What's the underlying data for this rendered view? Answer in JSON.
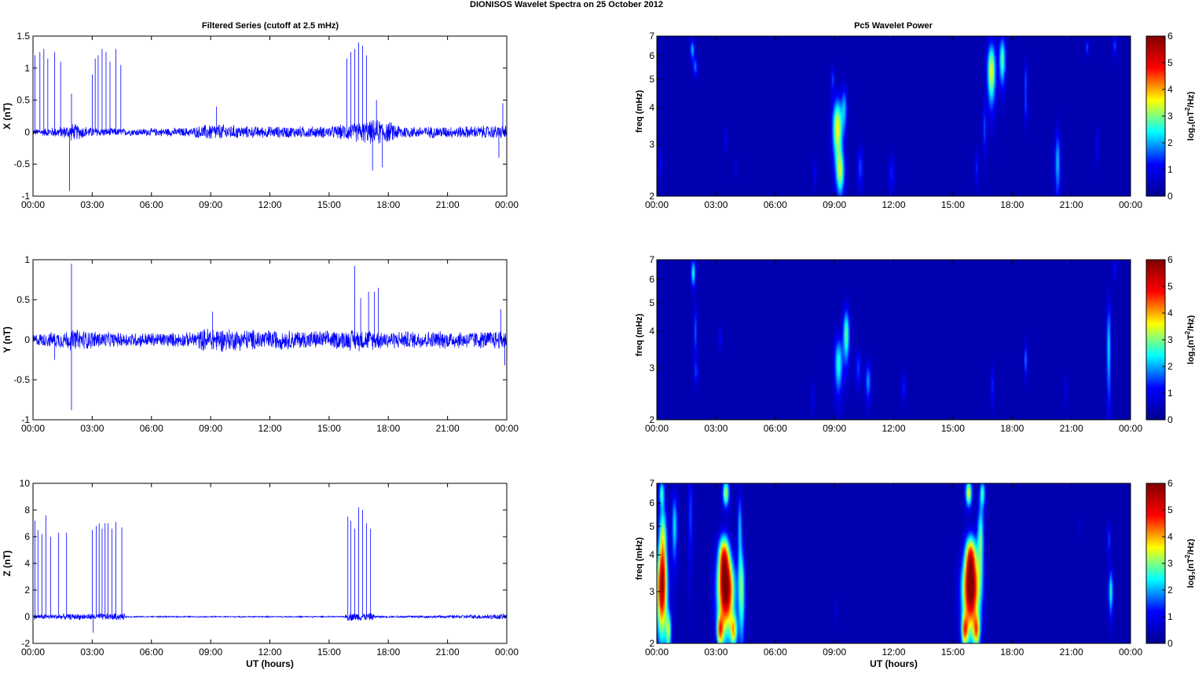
{
  "title": "DIONISOS Wavelet Spectra on 25 October   2012",
  "left_title": "Filtered Series (cutoff at 2.5 mHz)",
  "right_title": "Pc5 Wavelet Power",
  "colormap": [
    "#00008f",
    "#0000ff",
    "#00ffff",
    "#ffff00",
    "#ff0000",
    "#800000"
  ],
  "chart_data": [
    {
      "type": "line",
      "ylabel": "X (nT)",
      "xlabel": "",
      "xlim": [
        0,
        24
      ],
      "ylim": [
        -1,
        1.5
      ],
      "yticks": [
        -1,
        -0.5,
        0,
        0.5,
        1,
        1.5
      ],
      "ytick_labels": [
        "-1",
        "-0.5",
        "0",
        "0.5",
        "1",
        "1.5"
      ],
      "xtick_labels": [
        "00:00",
        "03:00",
        "06:00",
        "09:00",
        "12:00",
        "15:00",
        "18:00",
        "21:00",
        "00:00"
      ],
      "noise_profile": [
        [
          0,
          0.05
        ],
        [
          1.5,
          0.1
        ],
        [
          2,
          0.15
        ],
        [
          3,
          0.08
        ],
        [
          5,
          0.06
        ],
        [
          8,
          0.08
        ],
        [
          9,
          0.15
        ],
        [
          11,
          0.1
        ],
        [
          15,
          0.1
        ],
        [
          16,
          0.15
        ],
        [
          17.5,
          0.22
        ],
        [
          19,
          0.1
        ],
        [
          21,
          0.1
        ],
        [
          24,
          0.12
        ]
      ],
      "spikes": [
        [
          0.1,
          1.2
        ],
        [
          0.35,
          1.25
        ],
        [
          0.55,
          1.3
        ],
        [
          0.75,
          1.15
        ],
        [
          1.1,
          1.25
        ],
        [
          1.4,
          1.1
        ],
        [
          1.85,
          -0.92
        ],
        [
          1.95,
          0.6
        ],
        [
          3.0,
          0.9
        ],
        [
          3.15,
          1.15
        ],
        [
          3.3,
          1.2
        ],
        [
          3.5,
          1.3
        ],
        [
          3.7,
          1.25
        ],
        [
          3.9,
          1.1
        ],
        [
          4.2,
          1.3
        ],
        [
          4.45,
          1.05
        ],
        [
          9.3,
          0.4
        ],
        [
          15.9,
          1.15
        ],
        [
          16.1,
          1.25
        ],
        [
          16.3,
          1.3
        ],
        [
          16.5,
          1.4
        ],
        [
          16.7,
          1.35
        ],
        [
          16.9,
          1.2
        ],
        [
          17.2,
          -0.6
        ],
        [
          17.4,
          0.5
        ],
        [
          17.7,
          -0.55
        ],
        [
          23.8,
          0.45
        ],
        [
          23.6,
          -0.4
        ]
      ]
    },
    {
      "type": "line",
      "ylabel": "Y (nT)",
      "xlabel": "",
      "xlim": [
        0,
        24
      ],
      "ylim": [
        -1,
        1
      ],
      "yticks": [
        -1,
        -0.5,
        0,
        0.5,
        1
      ],
      "ytick_labels": [
        "-1",
        "-0.5",
        "0",
        "0.5",
        "1"
      ],
      "xtick_labels": [
        "00:00",
        "03:00",
        "06:00",
        "09:00",
        "12:00",
        "15:00",
        "18:00",
        "21:00",
        "00:00"
      ],
      "noise_profile": [
        [
          0,
          0.08
        ],
        [
          1.5,
          0.12
        ],
        [
          2,
          0.15
        ],
        [
          4,
          0.1
        ],
        [
          8,
          0.1
        ],
        [
          9,
          0.18
        ],
        [
          10,
          0.15
        ],
        [
          15,
          0.12
        ],
        [
          16.5,
          0.15
        ],
        [
          18,
          0.12
        ],
        [
          23,
          0.12
        ],
        [
          24,
          0.15
        ]
      ],
      "spikes": [
        [
          1.95,
          0.95
        ],
        [
          1.95,
          -0.88
        ],
        [
          1.1,
          -0.25
        ],
        [
          9.1,
          0.35
        ],
        [
          16.3,
          0.92
        ],
        [
          16.6,
          0.52
        ],
        [
          17.0,
          0.6
        ],
        [
          17.3,
          0.6
        ],
        [
          17.5,
          0.65
        ],
        [
          23.7,
          0.38
        ],
        [
          23.9,
          -0.32
        ]
      ]
    },
    {
      "type": "line",
      "ylabel": "Z (nT)",
      "xlabel": "UT (hours)",
      "xlim": [
        0,
        24
      ],
      "ylim": [
        -2,
        10
      ],
      "yticks": [
        -2,
        0,
        2,
        4,
        6,
        8,
        10
      ],
      "ytick_labels": [
        "-2",
        "0",
        "2",
        "4",
        "6",
        "8",
        "10"
      ],
      "xtick_labels": [
        "00:00",
        "03:00",
        "06:00",
        "09:00",
        "12:00",
        "15:00",
        "18:00",
        "21:00",
        "00:00"
      ],
      "noise_profile": [
        [
          0,
          0.2
        ],
        [
          4.6,
          0.3
        ],
        [
          4.7,
          0.05
        ],
        [
          15.8,
          0.05
        ],
        [
          15.9,
          0.35
        ],
        [
          17.2,
          0.3
        ],
        [
          17.4,
          0.08
        ],
        [
          21,
          0.12
        ],
        [
          24,
          0.25
        ]
      ],
      "spikes": [
        [
          0.1,
          7.2
        ],
        [
          0.25,
          6.5
        ],
        [
          0.45,
          6.2
        ],
        [
          0.65,
          7.6
        ],
        [
          0.9,
          6.0
        ],
        [
          1.3,
          6.3
        ],
        [
          1.7,
          6.3
        ],
        [
          3.0,
          6.5
        ],
        [
          3.2,
          6.8
        ],
        [
          3.35,
          7.0
        ],
        [
          3.5,
          6.6
        ],
        [
          3.65,
          7.0
        ],
        [
          3.8,
          7.0
        ],
        [
          4.0,
          6.6
        ],
        [
          4.2,
          7.1
        ],
        [
          4.5,
          6.7
        ],
        [
          3.05,
          -1.2
        ],
        [
          15.95,
          7.5
        ],
        [
          16.1,
          7.2
        ],
        [
          16.3,
          6.6
        ],
        [
          16.5,
          8.2
        ],
        [
          16.7,
          8.0
        ],
        [
          16.9,
          7.0
        ],
        [
          17.1,
          6.6
        ]
      ]
    },
    {
      "type": "heatmap",
      "ylabel": "freq (mHz)",
      "xlabel": "",
      "xlim": [
        0,
        24
      ],
      "ylim": [
        2,
        7
      ],
      "yscale": "log",
      "yticks": [
        2,
        3,
        4,
        5,
        6,
        7
      ],
      "ytick_labels": [
        "2",
        "3",
        "4",
        "5",
        "6",
        "7"
      ],
      "xtick_labels": [
        "00:00",
        "03:00",
        "06:00",
        "09:00",
        "12:00",
        "15:00",
        "18:00",
        "21:00",
        "00:00"
      ],
      "colorbar_label": "log2(nT2/Hz)",
      "clim": [
        0,
        6
      ],
      "colorbar_ticks": [
        "0",
        "1",
        "2",
        "3",
        "4",
        "5",
        "6"
      ],
      "blobs": [
        [
          1.8,
          6.3,
          0.08,
          0.35,
          1.8
        ],
        [
          1.95,
          5.5,
          0.08,
          0.3,
          1.4
        ],
        [
          0.2,
          2.6,
          0.06,
          0.2,
          0.8
        ],
        [
          3.5,
          3.1,
          0.06,
          0.2,
          0.8
        ],
        [
          4.0,
          2.5,
          0.05,
          0.15,
          0.6
        ],
        [
          8.0,
          2.4,
          0.06,
          0.2,
          0.8
        ],
        [
          8.9,
          5.0,
          0.06,
          0.35,
          1.2
        ],
        [
          9.15,
          3.4,
          0.18,
          0.6,
          3.3
        ],
        [
          9.3,
          2.4,
          0.15,
          0.3,
          2.5
        ],
        [
          9.5,
          4.0,
          0.1,
          0.5,
          1.5
        ],
        [
          10.3,
          2.5,
          0.1,
          0.3,
          1.2
        ],
        [
          11.9,
          2.4,
          0.1,
          0.25,
          1.0
        ],
        [
          16.2,
          2.5,
          0.06,
          0.25,
          1.0
        ],
        [
          16.6,
          3.4,
          0.06,
          0.5,
          1.2
        ],
        [
          16.95,
          5.3,
          0.15,
          0.9,
          3.2
        ],
        [
          17.5,
          5.8,
          0.12,
          0.8,
          2.5
        ],
        [
          18.7,
          5.0,
          0.06,
          0.5,
          1.2
        ],
        [
          18.7,
          4.0,
          0.06,
          0.4,
          1.0
        ],
        [
          20.3,
          2.6,
          0.1,
          0.5,
          1.8
        ],
        [
          21.8,
          6.4,
          0.06,
          0.3,
          1.2
        ],
        [
          22.3,
          3.0,
          0.06,
          0.3,
          0.8
        ],
        [
          23.2,
          6.5,
          0.06,
          0.4,
          1.3
        ]
      ]
    },
    {
      "type": "heatmap",
      "ylabel": "freq (mHz)",
      "xlabel": "",
      "xlim": [
        0,
        24
      ],
      "ylim": [
        2,
        7
      ],
      "yscale": "log",
      "yticks": [
        2,
        3,
        4,
        5,
        6,
        7
      ],
      "ytick_labels": [
        "2",
        "3",
        "4",
        "5",
        "6",
        "7"
      ],
      "xtick_labels": [
        "00:00",
        "03:00",
        "06:00",
        "09:00",
        "12:00",
        "15:00",
        "18:00",
        "21:00",
        "00:00"
      ],
      "colorbar_label": "log2(nT2/Hz)",
      "clim": [
        0,
        6
      ],
      "colorbar_ticks": [
        "0",
        "1",
        "2",
        "3",
        "4",
        "5",
        "6"
      ],
      "blobs": [
        [
          1.85,
          6.3,
          0.08,
          0.5,
          2.2
        ],
        [
          1.95,
          4.0,
          0.06,
          0.6,
          1.3
        ],
        [
          2.0,
          2.9,
          0.06,
          0.2,
          1.1
        ],
        [
          3.2,
          3.8,
          0.06,
          0.25,
          0.9
        ],
        [
          7.9,
          2.4,
          0.06,
          0.2,
          0.8
        ],
        [
          9.2,
          3.1,
          0.15,
          0.5,
          2.2
        ],
        [
          9.6,
          3.9,
          0.12,
          0.6,
          2.5
        ],
        [
          10.2,
          3.0,
          0.1,
          0.3,
          1.2
        ],
        [
          10.7,
          2.7,
          0.1,
          0.3,
          1.6
        ],
        [
          12.5,
          2.6,
          0.08,
          0.2,
          1.0
        ],
        [
          17.0,
          2.6,
          0.06,
          0.3,
          1.0
        ],
        [
          18.7,
          3.2,
          0.06,
          0.3,
          1.5
        ],
        [
          20.7,
          2.5,
          0.06,
          0.2,
          0.6
        ],
        [
          22.9,
          3.5,
          0.08,
          1.0,
          2.0
        ],
        [
          23.2,
          6.5,
          0.06,
          0.4,
          1.0
        ]
      ]
    },
    {
      "type": "heatmap",
      "ylabel": "freq (mHz)",
      "xlabel": "UT (hours)",
      "xlim": [
        0,
        24
      ],
      "ylim": [
        2,
        7
      ],
      "yscale": "log",
      "yticks": [
        2,
        3,
        4,
        5,
        6,
        7
      ],
      "ytick_labels": [
        "2",
        "3",
        "4",
        "5",
        "6",
        "7"
      ],
      "xtick_labels": [
        "00:00",
        "03:00",
        "06:00",
        "09:00",
        "12:00",
        "15:00",
        "18:00",
        "21:00",
        "00:00"
      ],
      "colorbar_label": "log2(nT2/Hz)",
      "clim": [
        0,
        6
      ],
      "colorbar_ticks": [
        "0",
        "1",
        "2",
        "3",
        "4",
        "5",
        "6"
      ],
      "blobs": [
        [
          0.25,
          3.0,
          0.2,
          0.7,
          4.6
        ],
        [
          0.3,
          4.5,
          0.15,
          0.9,
          3.0
        ],
        [
          0.25,
          6.5,
          0.1,
          0.5,
          2.2
        ],
        [
          0.6,
          2.2,
          0.1,
          0.25,
          2.5
        ],
        [
          0.9,
          5.0,
          0.1,
          1.0,
          2.0
        ],
        [
          1.7,
          5.5,
          0.08,
          1.5,
          1.2
        ],
        [
          3.5,
          3.0,
          0.3,
          0.6,
          5.6
        ],
        [
          3.4,
          4.0,
          0.2,
          0.5,
          3.5
        ],
        [
          3.5,
          6.5,
          0.12,
          0.5,
          3.0
        ],
        [
          3.2,
          2.2,
          0.12,
          0.2,
          3.0
        ],
        [
          3.9,
          2.2,
          0.12,
          0.2,
          2.8
        ],
        [
          4.3,
          3.0,
          0.12,
          0.8,
          2.5
        ],
        [
          4.2,
          5.0,
          0.08,
          1.0,
          1.8
        ],
        [
          9.1,
          2.6,
          0.05,
          0.2,
          0.4
        ],
        [
          15.9,
          3.0,
          0.3,
          0.6,
          5.6
        ],
        [
          15.9,
          4.0,
          0.2,
          0.5,
          3.5
        ],
        [
          15.8,
          6.5,
          0.12,
          0.5,
          3.2
        ],
        [
          15.6,
          2.2,
          0.12,
          0.2,
          3.0
        ],
        [
          16.2,
          2.2,
          0.12,
          0.2,
          2.8
        ],
        [
          16.4,
          4.5,
          0.12,
          1.0,
          2.5
        ],
        [
          16.5,
          6.5,
          0.1,
          0.5,
          2.2
        ],
        [
          23.0,
          3.0,
          0.08,
          0.4,
          2.2
        ],
        [
          22.9,
          4.5,
          0.06,
          0.4,
          1.2
        ],
        [
          21.4,
          5.0,
          0.05,
          0.3,
          0.4
        ]
      ]
    }
  ]
}
